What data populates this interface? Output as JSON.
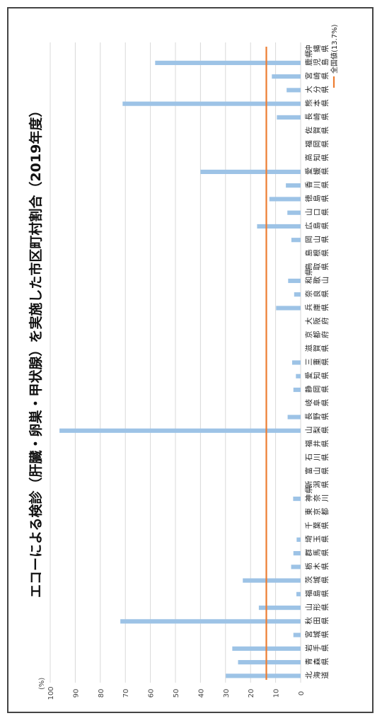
{
  "chart_data": {
    "type": "bar",
    "title": "エコーによる検診（肝臓・卵巣・甲状腺）を実施した市区町村割合（2019年度）",
    "ylabel": "(%)",
    "ylim": [
      0,
      100
    ],
    "yticks": [
      0,
      10,
      20,
      30,
      40,
      50,
      60,
      70,
      80,
      90,
      100
    ],
    "grid": true,
    "legend_position": "top-right",
    "colors": {
      "bars": "#9dc3e6",
      "reference": "#ed7d31",
      "grid": "#d9d9d9"
    },
    "reference_line": {
      "name": "全国値(13.7%)",
      "value": 13.7
    },
    "categories": [
      "北海道",
      "青森県",
      "岩手県",
      "宮城県",
      "秋田県",
      "山形県",
      "福島県",
      "茨城県",
      "栃木県",
      "群馬県",
      "埼玉県",
      "千葉県",
      "東京都",
      "神奈川県",
      "新潟県",
      "富山県",
      "石川県",
      "福井県",
      "山梨県",
      "長野県",
      "岐阜県",
      "静岡県",
      "愛知県",
      "三重県",
      "滋賀県",
      "京都府",
      "大阪府",
      "兵庫県",
      "奈良県",
      "和歌山県",
      "鳥取県",
      "島根県",
      "岡山県",
      "広島県",
      "山口県",
      "徳島県",
      "香川県",
      "愛媛県",
      "高知県",
      "福岡県",
      "佐賀県",
      "長崎県",
      "熊本県",
      "大分県",
      "宮崎県",
      "鹿児島県",
      "沖縄県"
    ],
    "values": [
      29.9,
      25.0,
      27.3,
      2.9,
      72.0,
      16.7,
      1.7,
      23.1,
      3.8,
      2.9,
      1.6,
      0,
      0,
      3.0,
      0,
      0,
      0,
      0,
      96.3,
      5.2,
      0,
      2.9,
      1.9,
      3.4,
      0,
      0,
      0,
      9.8,
      2.6,
      5.0,
      0,
      0,
      3.7,
      17.4,
      5.3,
      12.5,
      5.9,
      40.0,
      0,
      0,
      0,
      9.5,
      71.1,
      5.6,
      11.5,
      58.1,
      0
    ]
  }
}
